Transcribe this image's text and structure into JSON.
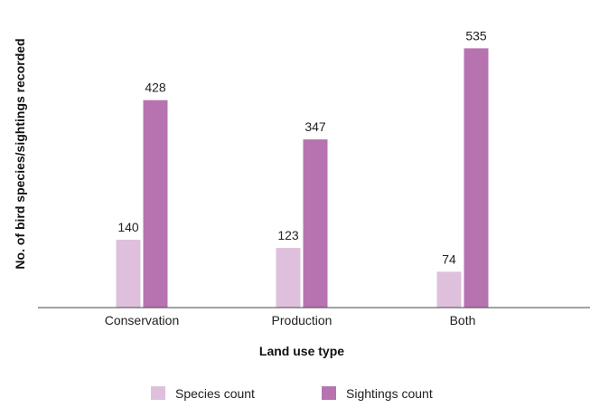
{
  "chart_data": {
    "type": "bar",
    "title": "",
    "xlabel": "Land use type",
    "ylabel": "No. of bird species/sightings recorded",
    "categories": [
      "Conservation",
      "Production",
      "Both"
    ],
    "series": [
      {
        "name": "Species count",
        "values": [
          140,
          123,
          74
        ],
        "color": "#dfc0dc"
      },
      {
        "name": "Sightings count",
        "values": [
          428,
          347,
          535
        ],
        "color": "#b773b0"
      }
    ],
    "ylim": [
      0,
      560
    ],
    "grid": false,
    "legend_position": "bottom-center",
    "data_labels": true
  }
}
